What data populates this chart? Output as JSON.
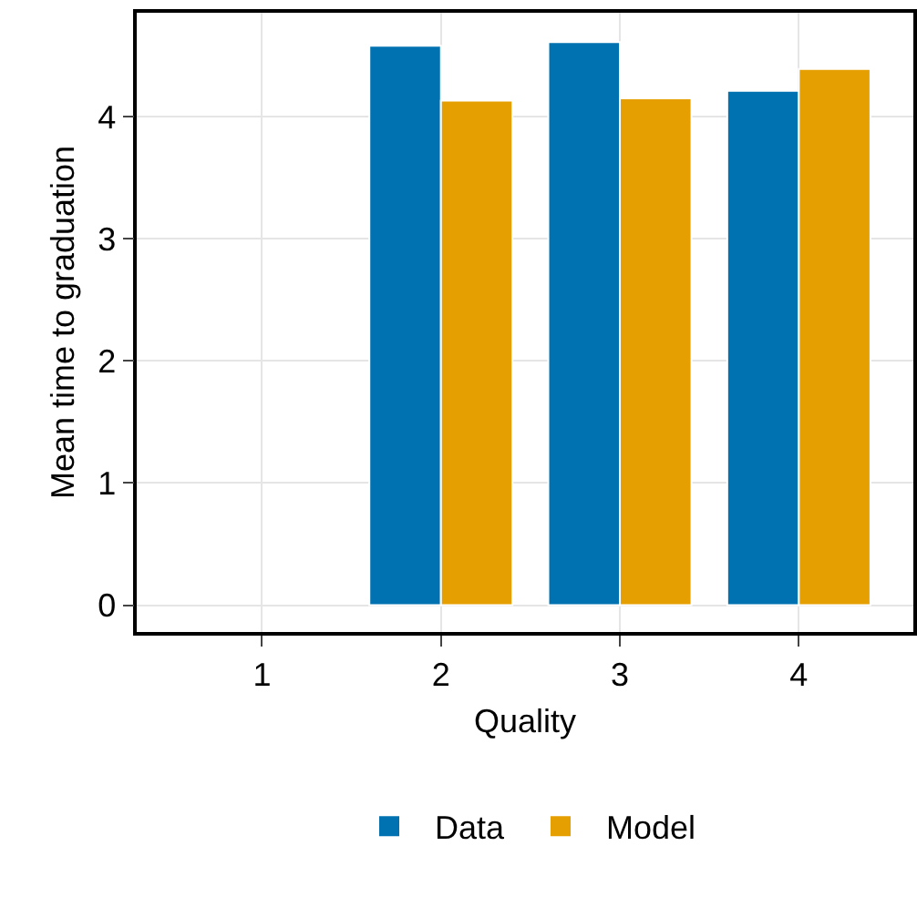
{
  "chart_data": {
    "type": "bar",
    "xlabel": "Quality",
    "ylabel": "Mean time to graduation",
    "x": [
      2,
      3,
      4
    ],
    "series": [
      {
        "name": "Data",
        "color": "#0072b2",
        "values": [
          4.58,
          4.61,
          4.21
        ]
      },
      {
        "name": "Model",
        "color": "#e69f00",
        "values": [
          4.13,
          4.15,
          4.39
        ]
      }
    ],
    "xlim": [
      0.3,
      4.64
    ],
    "xticks": [
      1,
      2,
      3,
      4
    ],
    "ylim": [
      -0.22,
      4.85
    ],
    "yticks": [
      0,
      1,
      2,
      3,
      4
    ],
    "grid": true,
    "legend": "bottom"
  }
}
